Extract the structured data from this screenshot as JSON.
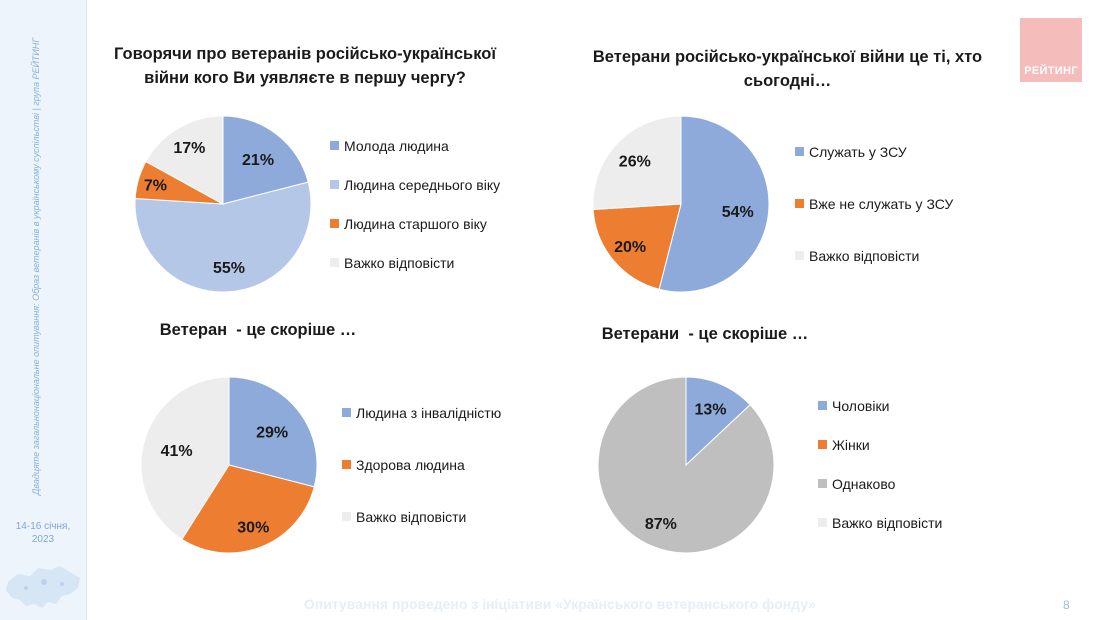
{
  "sidebar": {
    "vertical_text": "Двадцяте загальнонаціональне опитування: Образ ветеранів в українському суспільстві | група РЕЙТИНГ",
    "date_line1": "14-16 січня,",
    "date_line2": "2023"
  },
  "logo": {
    "text": "РЕЙТИНГ",
    "color": "#f5bcbc"
  },
  "footer": {
    "text": "Опитування проведено з ініціативи «Українського ветеранського фонду»",
    "page": "8"
  },
  "colors": {
    "blue": "#8eaadb",
    "light_blue": "#b4c7e7",
    "orange": "#ed7d31",
    "light_gray": "#ededed",
    "gray": "#bfbfbf"
  },
  "chart_data": [
    {
      "type": "pie",
      "title": "Говорячи про ветеранів російсько-української війни кого Ви уявляєте в першу чергу?",
      "title_lines": [
        "Говорячи про ветеранів російсько-української",
        "війни кого Ви уявляєте в першу чергу?"
      ],
      "slices": [
        {
          "label": "Молода людина",
          "value": 21,
          "text": "21%",
          "color": "#8eaadb"
        },
        {
          "label": "Людина середнього віку",
          "value": 55,
          "text": "55%",
          "color": "#b4c7e7"
        },
        {
          "label": "Людина старшого віку",
          "value": 7,
          "text": "7%",
          "color": "#ed7d31"
        },
        {
          "label": "Важко відповісти",
          "value": 17,
          "text": "17%",
          "color": "#ededed"
        }
      ]
    },
    {
      "type": "pie",
      "title": "Ветерани російсько-української війни це ті, хто сьогодні…",
      "title_lines": [
        "Ветерани російсько-української війни це ті, хто",
        "сьогодні…"
      ],
      "slices": [
        {
          "label": "Служать у ЗСУ",
          "value": 54,
          "text": "54%",
          "color": "#8eaadb"
        },
        {
          "label": "Вже не служать у ЗСУ",
          "value": 20,
          "text": "20%",
          "color": "#ed7d31"
        },
        {
          "label": "Важко відповісти",
          "value": 26,
          "text": "26%",
          "color": "#ededed"
        }
      ]
    },
    {
      "type": "pie",
      "title": "Ветеран - це скоріше …",
      "title_lines": [
        "Ветеран  - це скоріше …"
      ],
      "slices": [
        {
          "label": "Людина з інвалідністю",
          "value": 29,
          "text": "29%",
          "color": "#8eaadb"
        },
        {
          "label": "Здорова людина",
          "value": 30,
          "text": "30%",
          "color": "#ed7d31"
        },
        {
          "label": "Важко відповісти",
          "value": 41,
          "text": "41%",
          "color": "#ededed"
        }
      ]
    },
    {
      "type": "pie",
      "title": "Ветерани - це скоріше …",
      "title_lines": [
        "Ветерани  - це скоріше …"
      ],
      "slices": [
        {
          "label": "Чоловіки",
          "value": 13,
          "text": "13%",
          "color": "#8eaadb"
        },
        {
          "label": "Жінки",
          "value": 0,
          "text": "",
          "color": "#ed7d31"
        },
        {
          "label": "Однаково",
          "value": 87,
          "text": "87%",
          "color": "#bfbfbf"
        },
        {
          "label": "Важко відповісти",
          "value": 0,
          "text": "",
          "color": "#ededed"
        }
      ]
    }
  ]
}
